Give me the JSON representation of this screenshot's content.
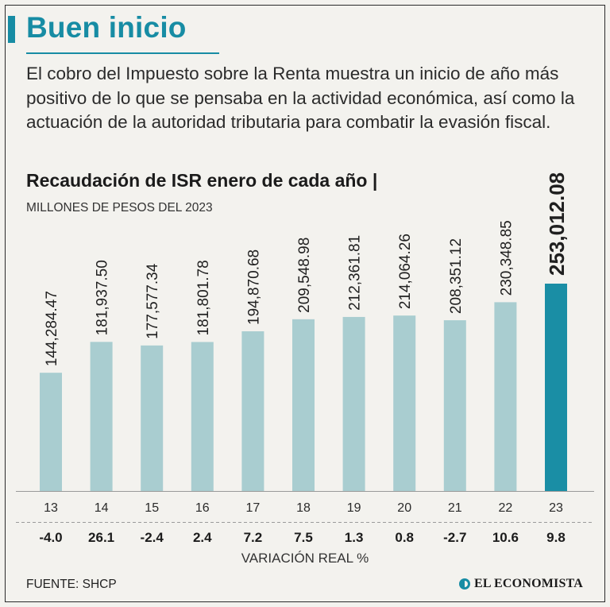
{
  "header": {
    "headline": "Buen inicio",
    "description": "El cobro del Impuesto sobre la Renta muestra un inicio de año más positivo de lo que se pensaba en la actividad económica, así como la actuación de la autoridad tributaria para combatir la evasión fiscal."
  },
  "colors": {
    "accent": "#178ca4",
    "bar": "#a9cdd0",
    "bar_highlight": "#1a8ea5",
    "background": "#f3f2ee"
  },
  "chart_data": {
    "type": "bar",
    "title": "Recaudación de ISR enero de cada año |",
    "subtitle": "MILLONES DE PESOS DEL 2023",
    "categories": [
      "13",
      "14",
      "15",
      "16",
      "17",
      "18",
      "19",
      "20",
      "21",
      "22",
      "23"
    ],
    "values": [
      144284.47,
      181937.5,
      177577.34,
      181801.78,
      194870.68,
      209548.98,
      212361.81,
      214064.26,
      208351.12,
      230348.85,
      253012.08
    ],
    "value_labels": [
      "144,284.47",
      "181,937.50",
      "177,577.34",
      "181,801.78",
      "194,870.68",
      "209,548.98",
      "212,361.81",
      "214,064.26",
      "208,351.12",
      "230,348.85",
      "253,012.08"
    ],
    "highlight_index": 10,
    "ylim": [
      0,
      253012.08
    ],
    "grid": false,
    "variation": {
      "label": "VARIACIÓN REAL %",
      "values": [
        "-4.0",
        "26.1",
        "-2.4",
        "2.4",
        "7.2",
        "7.5",
        "1.3",
        "0.8",
        "-2.7",
        "10.6",
        "9.8"
      ]
    }
  },
  "footer": {
    "source": "FUENTE: SHCP",
    "logo_text": "EL ECONOMISTA",
    "logo_icon": "el-economista-logo-icon"
  }
}
